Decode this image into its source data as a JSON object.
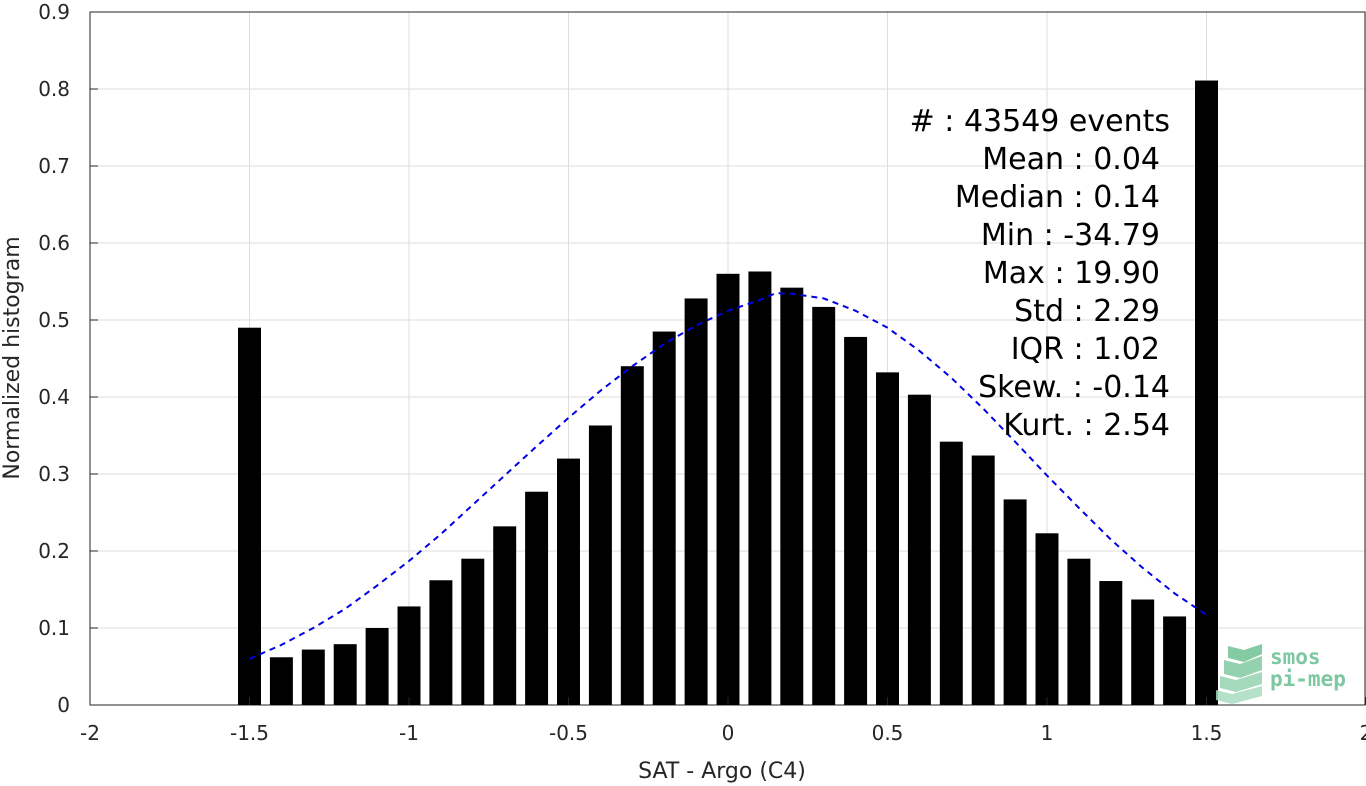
{
  "chart_data": {
    "type": "bar",
    "xlabel": "SAT - Argo (C4)",
    "ylabel": "Normalized histogram",
    "xlim": [
      -2,
      2
    ],
    "ylim": [
      0,
      0.9
    ],
    "xticks": [
      -2,
      -1.5,
      -1,
      -0.5,
      0,
      0.5,
      1,
      1.5,
      2
    ],
    "xtick_labels": [
      "-2",
      "-1.5",
      "-1",
      "-0.5",
      "0",
      "0.5",
      "1",
      "1.5",
      "2"
    ],
    "yticks": [
      0,
      0.1,
      0.2,
      0.3,
      0.4,
      0.5,
      0.6,
      0.7,
      0.8,
      0.9
    ],
    "ytick_labels": [
      "0",
      "0.1",
      "0.2",
      "0.3",
      "0.4",
      "0.5",
      "0.6",
      "0.7",
      "0.8",
      "0.9"
    ],
    "grid": true,
    "bar_color": "#000000",
    "bars": {
      "x": [
        -1.5,
        -1.4,
        -1.3,
        -1.2,
        -1.1,
        -1.0,
        -0.9,
        -0.8,
        -0.7,
        -0.6,
        -0.5,
        -0.4,
        -0.3,
        -0.2,
        -0.1,
        0.0,
        0.1,
        0.2,
        0.3,
        0.4,
        0.5,
        0.6,
        0.7,
        0.8,
        0.9,
        1.0,
        1.1,
        1.2,
        1.3,
        1.4,
        1.5
      ],
      "values": [
        0.49,
        0.062,
        0.072,
        0.079,
        0.1,
        0.128,
        0.162,
        0.19,
        0.232,
        0.277,
        0.32,
        0.363,
        0.44,
        0.485,
        0.528,
        0.56,
        0.563,
        0.542,
        0.517,
        0.478,
        0.432,
        0.403,
        0.342,
        0.324,
        0.267,
        0.223,
        0.19,
        0.161,
        0.137,
        0.115,
        0.811
      ]
    },
    "fit_curve": {
      "style": "dashed",
      "color": "#0000e6",
      "x": [
        -1.5,
        -1.4,
        -1.3,
        -1.2,
        -1.1,
        -1.0,
        -0.9,
        -0.8,
        -0.7,
        -0.6,
        -0.5,
        -0.4,
        -0.3,
        -0.2,
        -0.1,
        0.0,
        0.1,
        0.15,
        0.2,
        0.3,
        0.4,
        0.5,
        0.6,
        0.7,
        0.8,
        0.9,
        1.0,
        1.1,
        1.2,
        1.3,
        1.4,
        1.5
      ],
      "y": [
        0.06,
        0.078,
        0.1,
        0.125,
        0.155,
        0.187,
        0.222,
        0.26,
        0.298,
        0.336,
        0.373,
        0.408,
        0.44,
        0.469,
        0.493,
        0.512,
        0.526,
        0.535,
        0.534,
        0.528,
        0.512,
        0.49,
        0.46,
        0.425,
        0.385,
        0.342,
        0.298,
        0.256,
        0.215,
        0.178,
        0.145,
        0.117
      ]
    }
  },
  "stats": [
    "#  : 43549 events",
    "Mean : 0.04",
    "Median : 0.14",
    "Min : -34.79",
    "Max : 19.90",
    "Std : 2.29",
    "IQR : 1.02",
    "Skew. : -0.14",
    "Kurt. : 2.54"
  ],
  "logo": {
    "line1": "smos",
    "line2": "pi-mep",
    "color": "#7dc8a0"
  }
}
